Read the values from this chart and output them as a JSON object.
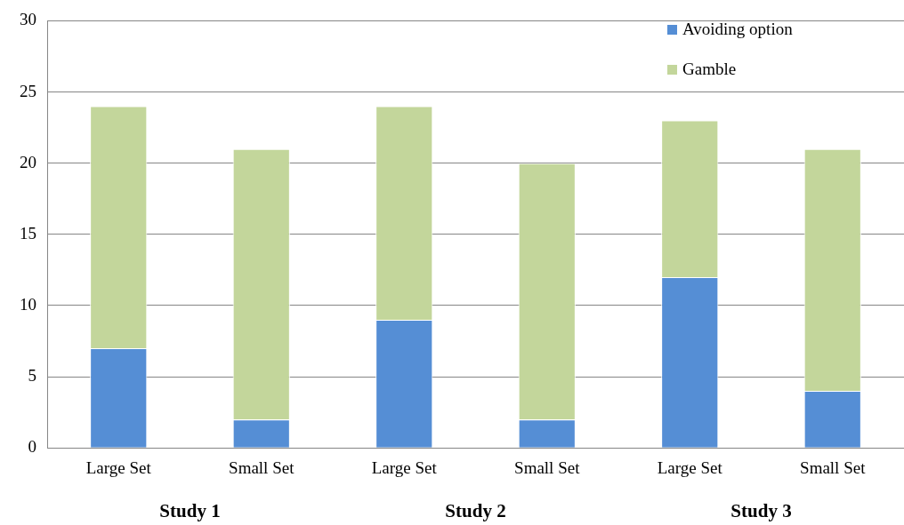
{
  "chart_data": {
    "type": "bar",
    "stacked": true,
    "categories": [
      "Large Set",
      "Small Set",
      "Large Set",
      "Small Set",
      "Large Set",
      "Small Set"
    ],
    "series": [
      {
        "name": "Avoiding option",
        "color": "#558ed5",
        "values": [
          7,
          2,
          9,
          2,
          12,
          4
        ]
      },
      {
        "name": "Gamble",
        "color": "#c3d69b",
        "values": [
          17,
          19,
          15,
          18,
          11,
          17
        ]
      }
    ],
    "ylim": [
      0,
      30
    ],
    "yticks": [
      0,
      5,
      10,
      15,
      20,
      25,
      30
    ],
    "grid": "y",
    "legend": "top right",
    "annotations": [
      "Study 1",
      "Study 2",
      "Study 3"
    ]
  }
}
